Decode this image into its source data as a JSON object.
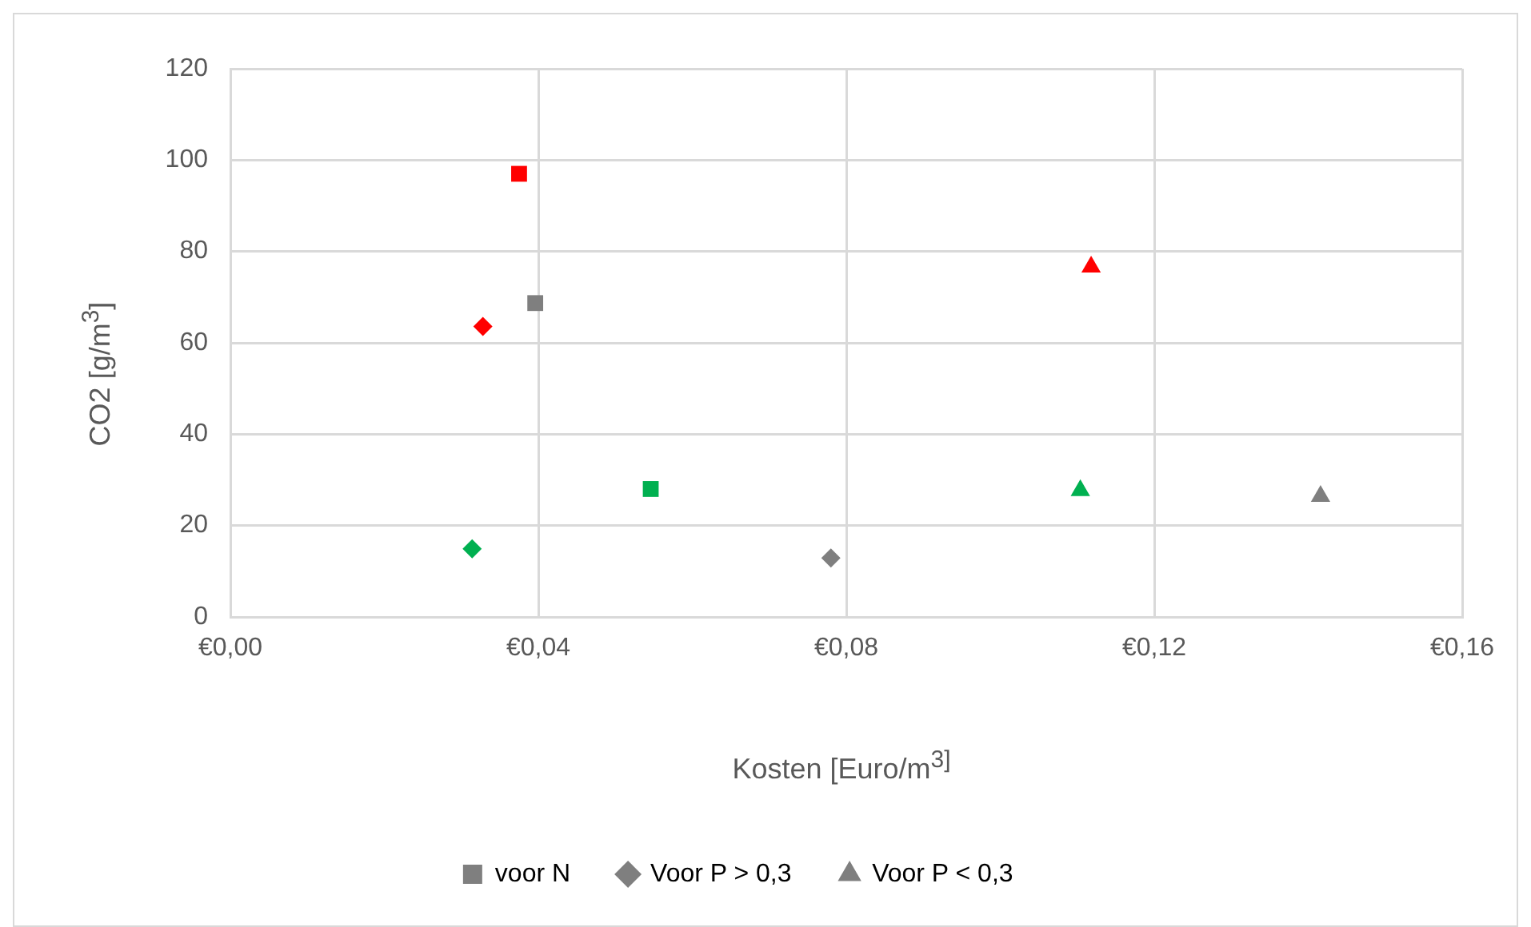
{
  "chart_data": {
    "type": "scatter",
    "xlabel": "Kosten [Euro/m$^{3]}$",
    "ylabel": "CO2 [g/m$^{3}$]",
    "xlim": [
      0,
      0.16
    ],
    "xticks": [
      {
        "value": 0,
        "label": "€0,00"
      },
      {
        "value": 0.04,
        "label": "€0,04"
      },
      {
        "value": 0.08,
        "label": "€0,08"
      },
      {
        "value": 0.12,
        "label": "€0,12"
      },
      {
        "value": 0.16,
        "label": "€0,16"
      }
    ],
    "ylim": [
      0,
      120
    ],
    "yticks": [
      0,
      20,
      40,
      60,
      80,
      100,
      120
    ],
    "grid": true,
    "legend": "bottom",
    "series": [
      {
        "name": "voor N",
        "marker": "square",
        "color": "#7f7f7f",
        "x": [
          0.0375,
          0.0396,
          0.0546
        ],
        "values": [
          97,
          68.7,
          28
        ],
        "colors": [
          "#ff0000",
          "#7f7f7f",
          "#00b050"
        ]
      },
      {
        "name": "Voor P > 0,3",
        "marker": "diamond",
        "color": "#7f7f7f",
        "x": [
          0.0328,
          0.078,
          0.0314
        ],
        "values": [
          63.6,
          12.9,
          14.9
        ],
        "colors": [
          "#ff0000",
          "#7f7f7f",
          "#00b050"
        ]
      },
      {
        "name": "Voor P < 0,3",
        "marker": "triangle",
        "color": "#7f7f7f",
        "x": [
          0.1118,
          0.1416,
          0.1104
        ],
        "values": [
          76.6,
          26.4,
          27.7
        ],
        "colors": [
          "#ff0000",
          "#7f7f7f",
          "#00b050"
        ]
      }
    ]
  }
}
